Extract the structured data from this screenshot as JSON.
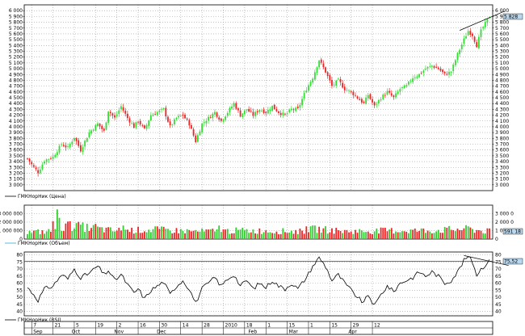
{
  "colors": {
    "up": "#33dd33",
    "down": "#ee2222",
    "volume": "#33cc33",
    "rsi_line": "#000000",
    "rsi_level": "#ee2222",
    "trendline": "#000000",
    "grid": "#9a9a9a",
    "badge": "#b8d8f0"
  },
  "chart_data": [
    {
      "type": "candlestick",
      "legend": "ГМКНорНик (Цена)",
      "ylim": [
        2900,
        6100
      ],
      "y_ticks": [
        "6 000",
        "5 900",
        "5 800",
        "5 700",
        "5 600",
        "5 500",
        "5 400",
        "5 300",
        "5 200",
        "5 100",
        "5 000",
        "4 900",
        "4 800",
        "4 700",
        "4 600",
        "4 500",
        "4 400",
        "4 300",
        "4 200",
        "4 100",
        "4 000",
        "3 900",
        "3 800",
        "3 700",
        "3 600",
        "3 500",
        "3 400",
        "3 300",
        "3 200",
        "3 100",
        "3 000"
      ],
      "last_value": "5 828",
      "anchors": [
        [
          0,
          3450
        ],
        [
          3,
          3300
        ],
        [
          5,
          3220
        ],
        [
          8,
          3420
        ],
        [
          12,
          3480
        ],
        [
          16,
          3700
        ],
        [
          19,
          3640
        ],
        [
          22,
          3820
        ],
        [
          25,
          3600
        ],
        [
          29,
          3900
        ],
        [
          33,
          4050
        ],
        [
          36,
          3920
        ],
        [
          38,
          4280
        ],
        [
          41,
          4150
        ],
        [
          44,
          4350
        ],
        [
          47,
          4150
        ],
        [
          50,
          4000
        ],
        [
          52,
          4100
        ],
        [
          55,
          3950
        ],
        [
          58,
          4200
        ],
        [
          61,
          4250
        ],
        [
          64,
          4300
        ],
        [
          67,
          4000
        ],
        [
          70,
          4150
        ],
        [
          73,
          4200
        ],
        [
          76,
          4050
        ],
        [
          79,
          3750
        ],
        [
          82,
          4050
        ],
        [
          85,
          4150
        ],
        [
          88,
          4250
        ],
        [
          91,
          4100
        ],
        [
          94,
          4250
        ],
        [
          97,
          4400
        ],
        [
          100,
          4200
        ],
        [
          103,
          4300
        ],
        [
          106,
          4200
        ],
        [
          109,
          4300
        ],
        [
          112,
          4250
        ],
        [
          115,
          4350
        ],
        [
          118,
          4250
        ],
        [
          121,
          4200
        ],
        [
          124,
          4300
        ],
        [
          127,
          4300
        ],
        [
          131,
          4650
        ],
        [
          134,
          4850
        ],
        [
          137,
          5150
        ],
        [
          140,
          4950
        ],
        [
          143,
          4700
        ],
        [
          146,
          4800
        ],
        [
          149,
          4650
        ],
        [
          152,
          4600
        ],
        [
          155,
          4500
        ],
        [
          158,
          4400
        ],
        [
          160,
          4550
        ],
        [
          163,
          4350
        ],
        [
          166,
          4500
        ],
        [
          169,
          4600
        ],
        [
          172,
          4500
        ],
        [
          175,
          4650
        ],
        [
          178,
          4700
        ],
        [
          181,
          4850
        ],
        [
          184,
          4900
        ],
        [
          187,
          5000
        ],
        [
          190,
          5050
        ],
        [
          193,
          5000
        ],
        [
          196,
          4900
        ],
        [
          199,
          4950
        ],
        [
          202,
          5250
        ],
        [
          205,
          5500
        ],
        [
          207,
          5650
        ],
        [
          209,
          5580
        ],
        [
          211,
          5400
        ],
        [
          213,
          5650
        ],
        [
          215,
          5780
        ],
        [
          217,
          5900
        ]
      ]
    },
    {
      "type": "bar",
      "legend": "ГМКНорНик (Объем)",
      "ylim": [
        0,
        4000000
      ],
      "y_ticks": [
        "3 000 000",
        "2 000 000",
        "1 000 000",
        "0"
      ],
      "right_ticks": [
        "3 000 0",
        "2 000 0",
        "1 000 0",
        "0"
      ],
      "last_value": "591 18",
      "anchors": [
        [
          0,
          800000
        ],
        [
          10,
          900000
        ],
        [
          20,
          1600000
        ],
        [
          30,
          1300000
        ],
        [
          40,
          1000000
        ],
        [
          60,
          1100000
        ],
        [
          80,
          900000
        ],
        [
          100,
          1000000
        ],
        [
          128,
          900000
        ],
        [
          135,
          1200000
        ],
        [
          150,
          900000
        ],
        [
          170,
          1000000
        ],
        [
          190,
          1000000
        ],
        [
          205,
          1200000
        ],
        [
          217,
          900000
        ]
      ],
      "spikes": [
        [
          14,
          3500000
        ],
        [
          15,
          2500000
        ],
        [
          12,
          2100000
        ],
        [
          20,
          2100000
        ],
        [
          25,
          1700000
        ],
        [
          32,
          1800000
        ],
        [
          45,
          1600000
        ],
        [
          60,
          1500000
        ],
        [
          90,
          1600000
        ],
        [
          131,
          1500000
        ],
        [
          207,
          1500000
        ]
      ]
    },
    {
      "type": "line",
      "legend": "ГМКНорНик (RSI)",
      "ylim": [
        37,
        82
      ],
      "y_ticks": [
        "80",
        "75",
        "70",
        "65",
        "60",
        "55",
        "50",
        "45",
        "40"
      ],
      "last_value": "75,52",
      "level": 75.5,
      "anchors": [
        [
          0,
          57
        ],
        [
          3,
          52
        ],
        [
          5,
          48
        ],
        [
          8,
          56
        ],
        [
          12,
          58
        ],
        [
          16,
          66
        ],
        [
          19,
          63
        ],
        [
          22,
          70
        ],
        [
          25,
          64
        ],
        [
          29,
          67
        ],
        [
          33,
          72
        ],
        [
          36,
          66
        ],
        [
          38,
          69
        ],
        [
          41,
          62
        ],
        [
          44,
          66
        ],
        [
          47,
          59
        ],
        [
          50,
          53
        ],
        [
          52,
          56
        ],
        [
          55,
          49
        ],
        [
          58,
          55
        ],
        [
          61,
          58
        ],
        [
          64,
          61
        ],
        [
          67,
          52
        ],
        [
          70,
          58
        ],
        [
          73,
          62
        ],
        [
          76,
          56
        ],
        [
          79,
          46
        ],
        [
          82,
          56
        ],
        [
          85,
          60
        ],
        [
          88,
          64
        ],
        [
          91,
          58
        ],
        [
          94,
          63
        ],
        [
          97,
          66
        ],
        [
          100,
          58
        ],
        [
          103,
          62
        ],
        [
          106,
          56
        ],
        [
          109,
          60
        ],
        [
          112,
          57
        ],
        [
          115,
          62
        ],
        [
          118,
          58
        ],
        [
          121,
          56
        ],
        [
          124,
          60
        ],
        [
          127,
          56
        ],
        [
          131,
          64
        ],
        [
          134,
          72
        ],
        [
          137,
          78
        ],
        [
          140,
          72
        ],
        [
          143,
          62
        ],
        [
          146,
          66
        ],
        [
          149,
          60
        ],
        [
          152,
          55
        ],
        [
          155,
          50
        ],
        [
          158,
          46
        ],
        [
          160,
          52
        ],
        [
          163,
          44
        ],
        [
          166,
          52
        ],
        [
          169,
          58
        ],
        [
          172,
          54
        ],
        [
          175,
          60
        ],
        [
          178,
          62
        ],
        [
          181,
          64
        ],
        [
          184,
          68
        ],
        [
          187,
          65
        ],
        [
          190,
          68
        ],
        [
          193,
          65
        ],
        [
          196,
          60
        ],
        [
          199,
          62
        ],
        [
          202,
          68
        ],
        [
          205,
          76
        ],
        [
          207,
          79
        ],
        [
          209,
          75
        ],
        [
          211,
          66
        ],
        [
          213,
          70
        ],
        [
          215,
          73
        ],
        [
          217,
          75.5
        ]
      ]
    }
  ],
  "x_axis": {
    "n": 218,
    "day_ticks": [
      {
        "label": "7",
        "i": 2
      },
      {
        "label": "21",
        "i": 12
      },
      {
        "label": "5",
        "i": 22
      },
      {
        "label": "19",
        "i": 32
      },
      {
        "label": "2",
        "i": 42
      },
      {
        "label": "16",
        "i": 52
      },
      {
        "label": "30",
        "i": 62
      },
      {
        "label": "14",
        "i": 72
      },
      {
        "label": "28",
        "i": 82
      },
      {
        "label": "2010",
        "i": 92
      },
      {
        "label": "18",
        "i": 102
      },
      {
        "label": "1",
        "i": 112
      },
      {
        "label": "15",
        "i": 122
      },
      {
        "label": "1",
        "i": 132
      },
      {
        "label": "15",
        "i": 142
      },
      {
        "label": "29",
        "i": 152
      },
      {
        "label": "12",
        "i": 162
      }
    ],
    "month_labels": [
      {
        "label": "Sep",
        "i": 2
      },
      {
        "label": "Oct",
        "i": 20
      },
      {
        "label": "Nov",
        "i": 40
      },
      {
        "label": "Dec",
        "i": 60
      },
      {
        "label": "Feb",
        "i": 103
      },
      {
        "label": "Mar",
        "i": 122
      },
      {
        "label": "Apr",
        "i": 150
      }
    ]
  }
}
